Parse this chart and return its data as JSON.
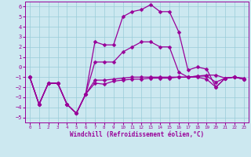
{
  "xlabel": "Windchill (Refroidissement éolien,°C)",
  "background_color": "#cce8f0",
  "grid_color": "#99ccd9",
  "line_color": "#990099",
  "markersize": 2.5,
  "linewidth": 0.9,
  "xlim": [
    -0.5,
    23.5
  ],
  "ylim": [
    -5.5,
    6.5
  ],
  "yticks": [
    -5,
    -4,
    -3,
    -2,
    -1,
    0,
    1,
    2,
    3,
    4,
    5,
    6
  ],
  "xticks": [
    0,
    1,
    2,
    3,
    4,
    5,
    6,
    7,
    8,
    9,
    10,
    11,
    12,
    13,
    14,
    15,
    16,
    17,
    18,
    19,
    20,
    21,
    22,
    23
  ],
  "series": [
    {
      "x": [
        0,
        1,
        2,
        3,
        4,
        5,
        6,
        7,
        8,
        9,
        10,
        11,
        12,
        13,
        14,
        15,
        16,
        17,
        18,
        19,
        20,
        21,
        22,
        23
      ],
      "y": [
        -1,
        -3.7,
        -1.6,
        -1.6,
        -3.7,
        -4.6,
        -2.7,
        -1.3,
        -1.3,
        -1.2,
        -1.1,
        -1.0,
        -1.0,
        -1.0,
        -1.0,
        -1.0,
        -1.0,
        -1.0,
        -0.9,
        -0.8,
        -0.8,
        -1.1,
        -1.0,
        -1.1
      ]
    },
    {
      "x": [
        0,
        1,
        2,
        3,
        4,
        5,
        6,
        7,
        8,
        9,
        10,
        11,
        12,
        13,
        14,
        15,
        16,
        17,
        18,
        19,
        20,
        21,
        22,
        23
      ],
      "y": [
        -1,
        -3.7,
        -1.6,
        -1.6,
        -3.7,
        -4.6,
        -2.7,
        2.5,
        2.2,
        2.2,
        5.0,
        5.5,
        5.7,
        6.2,
        5.5,
        5.5,
        3.5,
        -0.3,
        0.0,
        -0.2,
        -2.0,
        -1.1,
        -1.0,
        -1.2
      ]
    },
    {
      "x": [
        0,
        1,
        2,
        3,
        4,
        5,
        6,
        7,
        8,
        9,
        10,
        11,
        12,
        13,
        14,
        15,
        16,
        17,
        18,
        19,
        20,
        21,
        22,
        23
      ],
      "y": [
        -1,
        -3.7,
        -1.6,
        -1.6,
        -3.7,
        -4.6,
        -2.7,
        0.5,
        0.5,
        0.5,
        1.5,
        2.0,
        2.5,
        2.5,
        2.0,
        2.0,
        -0.5,
        -1.0,
        -1.0,
        -1.2,
        -2.0,
        -1.1,
        -1.0,
        -1.2
      ]
    },
    {
      "x": [
        0,
        1,
        2,
        3,
        4,
        5,
        6,
        7,
        8,
        9,
        10,
        11,
        12,
        13,
        14,
        15,
        16,
        17,
        18,
        19,
        20,
        21,
        22,
        23
      ],
      "y": [
        -1,
        -3.7,
        -1.6,
        -1.6,
        -3.7,
        -4.6,
        -2.7,
        -1.6,
        -1.7,
        -1.4,
        -1.3,
        -1.2,
        -1.2,
        -1.1,
        -1.1,
        -1.1,
        -1.0,
        -1.0,
        -0.9,
        -0.9,
        -1.5,
        -1.1,
        -1.0,
        -1.2
      ]
    }
  ]
}
